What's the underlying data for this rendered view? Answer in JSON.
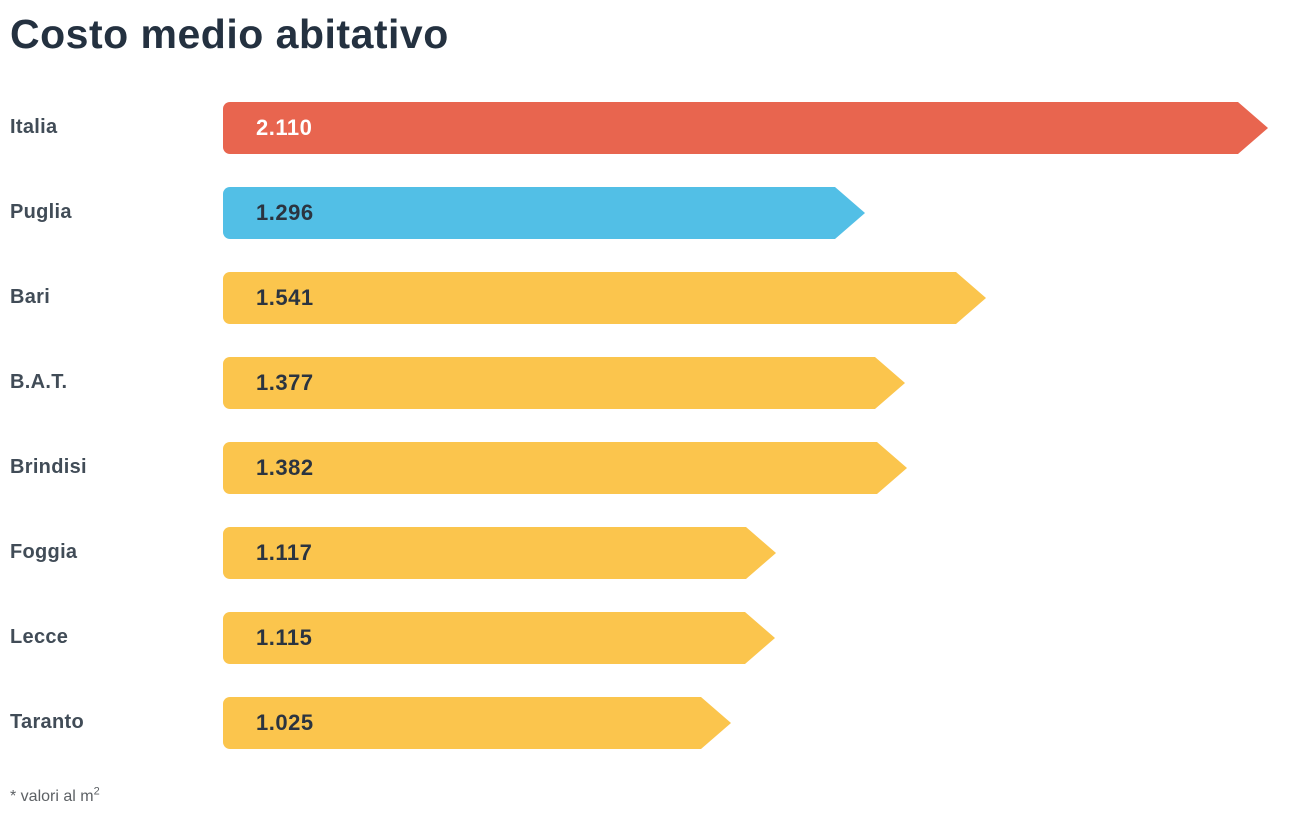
{
  "title": "Costo medio abitativo",
  "footnote": {
    "text": "* valori al m",
    "superscript": "2"
  },
  "colors": {
    "accent_red": "#e8654f",
    "accent_blue": "#52bfe6",
    "accent_yellow": "#fbc54d",
    "title_text": "#243140",
    "label_text": "#414c57",
    "value_text_dark": "#2b3440",
    "value_text_light": "#ffffff",
    "footnote_text": "#5d6165"
  },
  "chart_data": {
    "type": "bar",
    "orientation": "horizontal",
    "title": "Costo medio abitativo",
    "categories": [
      "Italia",
      "Puglia",
      "Bari",
      "B.A.T.",
      "Brindisi",
      "Foggia",
      "Lecce",
      "Taranto"
    ],
    "values": [
      2110,
      1296,
      1541,
      1377,
      1382,
      1117,
      1115,
      1025
    ],
    "value_labels": [
      "2.110",
      "1.296",
      "1.541",
      "1.377",
      "1.382",
      "1.117",
      "1.115",
      "1.025"
    ],
    "bar_colors": [
      "#e8654f",
      "#52bfe6",
      "#fbc54d",
      "#fbc54d",
      "#fbc54d",
      "#fbc54d",
      "#fbc54d",
      "#fbc54d"
    ],
    "value_label_colors": [
      "#ffffff",
      "#2b3440",
      "#2b3440",
      "#2b3440",
      "#2b3440",
      "#2b3440",
      "#2b3440",
      "#2b3440"
    ],
    "xlim": [
      0,
      2110
    ],
    "grid": false,
    "legend": "none",
    "unit_note": "* valori al m2"
  }
}
